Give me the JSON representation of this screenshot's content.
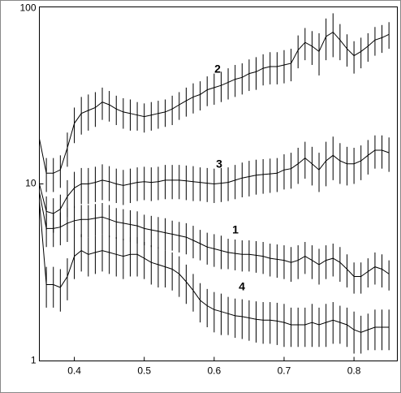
{
  "chart_data": {
    "type": "line",
    "log_scale": true,
    "x": [
      0.35,
      0.36,
      0.37,
      0.38,
      0.39,
      0.4,
      0.41,
      0.42,
      0.43,
      0.44,
      0.45,
      0.46,
      0.47,
      0.48,
      0.49,
      0.5,
      0.51,
      0.52,
      0.53,
      0.54,
      0.55,
      0.56,
      0.57,
      0.58,
      0.59,
      0.6,
      0.61,
      0.62,
      0.63,
      0.64,
      0.65,
      0.66,
      0.67,
      0.68,
      0.69,
      0.7,
      0.71,
      0.72,
      0.73,
      0.74,
      0.75,
      0.76,
      0.77,
      0.78,
      0.79,
      0.8,
      0.81,
      0.82,
      0.83,
      0.84,
      0.85
    ],
    "series": [
      {
        "name": "1",
        "color": "#000000",
        "values": [
          9,
          5.6,
          5.6,
          5.7,
          6,
          6.2,
          6.3,
          6.3,
          6.4,
          6.5,
          6.3,
          6.1,
          6,
          5.9,
          5.8,
          5.6,
          5.5,
          5.4,
          5.3,
          5.2,
          5.1,
          5,
          4.8,
          4.6,
          4.4,
          4.3,
          4.2,
          4.1,
          4.05,
          4,
          4,
          3.95,
          3.9,
          3.8,
          3.75,
          3.7,
          3.6,
          3.7,
          3.9,
          3.7,
          3.5,
          3.7,
          3.8,
          3.6,
          3.3,
          3,
          3,
          3.2,
          3.4,
          3.3,
          3.1
        ],
        "errors": [
          null,
          1.2,
          1.2,
          1.2,
          1.3,
          1.3,
          1.3,
          1.3,
          1.3,
          1.3,
          1.3,
          1.2,
          1.2,
          1.2,
          1.2,
          1.1,
          1.1,
          1.1,
          1.1,
          1,
          1,
          1,
          1,
          0.9,
          0.9,
          0.9,
          0.9,
          0.8,
          0.8,
          0.8,
          0.8,
          0.8,
          0.8,
          0.8,
          0.8,
          0.8,
          0.8,
          0.8,
          0.8,
          0.8,
          0.8,
          0.8,
          0.8,
          0.8,
          0.7,
          0.6,
          0.6,
          0.6,
          0.7,
          0.7,
          0.6
        ]
      },
      {
        "name": "2",
        "color": "#000000",
        "values": [
          18,
          11.5,
          11.5,
          12,
          16,
          22,
          25,
          26,
          27,
          29,
          28,
          26.5,
          25.5,
          25,
          24.5,
          24,
          24.5,
          25,
          25.5,
          26.5,
          28,
          29.5,
          31,
          32,
          34,
          35,
          36,
          37.5,
          39,
          40,
          42,
          43,
          45,
          46,
          46,
          47,
          48,
          57,
          63,
          60,
          56,
          68,
          72,
          65,
          58,
          53,
          56,
          60,
          65,
          67,
          70
        ],
        "errors": [
          null,
          2.5,
          2.5,
          2.5,
          3.5,
          5,
          6,
          6,
          6,
          6,
          5.5,
          5,
          5,
          5,
          4.5,
          4.5,
          4.5,
          4.5,
          4.5,
          5,
          5,
          5.5,
          6,
          6,
          6.5,
          7,
          7,
          7.5,
          8,
          8,
          8.5,
          9,
          9,
          9.5,
          9.5,
          10,
          10,
          12,
          13,
          13,
          15,
          18,
          20,
          15,
          12,
          11,
          11,
          11,
          12,
          12,
          12
        ]
      },
      {
        "name": "3",
        "color": "#000000",
        "values": [
          10,
          7,
          6.8,
          7.2,
          8.5,
          9.5,
          10,
          10,
          10.2,
          10.5,
          10.3,
          10,
          9.8,
          10,
          10.2,
          10.3,
          10.2,
          10.3,
          10.5,
          10.5,
          10.5,
          10.4,
          10.3,
          10.2,
          10.1,
          10,
          10.1,
          10.2,
          10.5,
          10.8,
          11,
          11.2,
          11.3,
          11.4,
          11.5,
          12,
          12.2,
          13,
          14,
          13,
          12,
          13.5,
          14.5,
          13.5,
          13,
          13,
          13.5,
          14.5,
          15.5,
          15.5,
          15
        ],
        "errors": [
          null,
          1.5,
          1.5,
          1.5,
          2,
          2.2,
          2.3,
          2.3,
          2.3,
          2.4,
          2.3,
          2.2,
          2.2,
          2.2,
          2.2,
          2.2,
          2.2,
          2.2,
          2.3,
          2.3,
          2.3,
          2.3,
          2.3,
          2.2,
          2.2,
          2.2,
          2.2,
          2.2,
          2.3,
          2.4,
          2.5,
          2.5,
          2.5,
          2.5,
          2.5,
          2.7,
          2.8,
          3,
          3.3,
          3.2,
          3,
          3.8,
          4,
          3.5,
          3.2,
          3,
          3,
          3.2,
          3.3,
          3.3,
          3.3
        ]
      },
      {
        "name": "4",
        "color": "#000000",
        "values": [
          8,
          2.7,
          2.7,
          2.6,
          3,
          3.9,
          4.2,
          4,
          4.1,
          4.2,
          4.1,
          4,
          3.9,
          4,
          4,
          3.8,
          3.6,
          3.5,
          3.4,
          3.3,
          3.1,
          2.8,
          2.5,
          2.2,
          2.05,
          1.95,
          1.9,
          1.85,
          1.8,
          1.78,
          1.75,
          1.72,
          1.7,
          1.7,
          1.68,
          1.65,
          1.6,
          1.6,
          1.6,
          1.65,
          1.6,
          1.65,
          1.7,
          1.65,
          1.6,
          1.5,
          1.45,
          1.5,
          1.55,
          1.55,
          1.55
        ],
        "errors": [
          null,
          0.7,
          0.7,
          0.7,
          0.8,
          1,
          1,
          1,
          1,
          1,
          1,
          1,
          1,
          1,
          1,
          0.9,
          0.9,
          0.9,
          0.8,
          0.8,
          0.8,
          0.7,
          0.6,
          0.55,
          0.5,
          0.5,
          0.5,
          0.45,
          0.45,
          0.45,
          0.45,
          0.45,
          0.45,
          0.45,
          0.45,
          0.45,
          0.4,
          0.4,
          0.4,
          0.45,
          0.4,
          0.45,
          0.45,
          0.4,
          0.4,
          0.4,
          0.35,
          0.35,
          0.4,
          0.4,
          0.4
        ]
      }
    ],
    "xlim": [
      0.35,
      0.862
    ],
    "xticks": [
      0.4,
      0.5,
      0.6,
      0.7,
      0.8
    ],
    "ylim": [
      1,
      100
    ],
    "yticks": [
      1,
      10,
      100
    ]
  }
}
